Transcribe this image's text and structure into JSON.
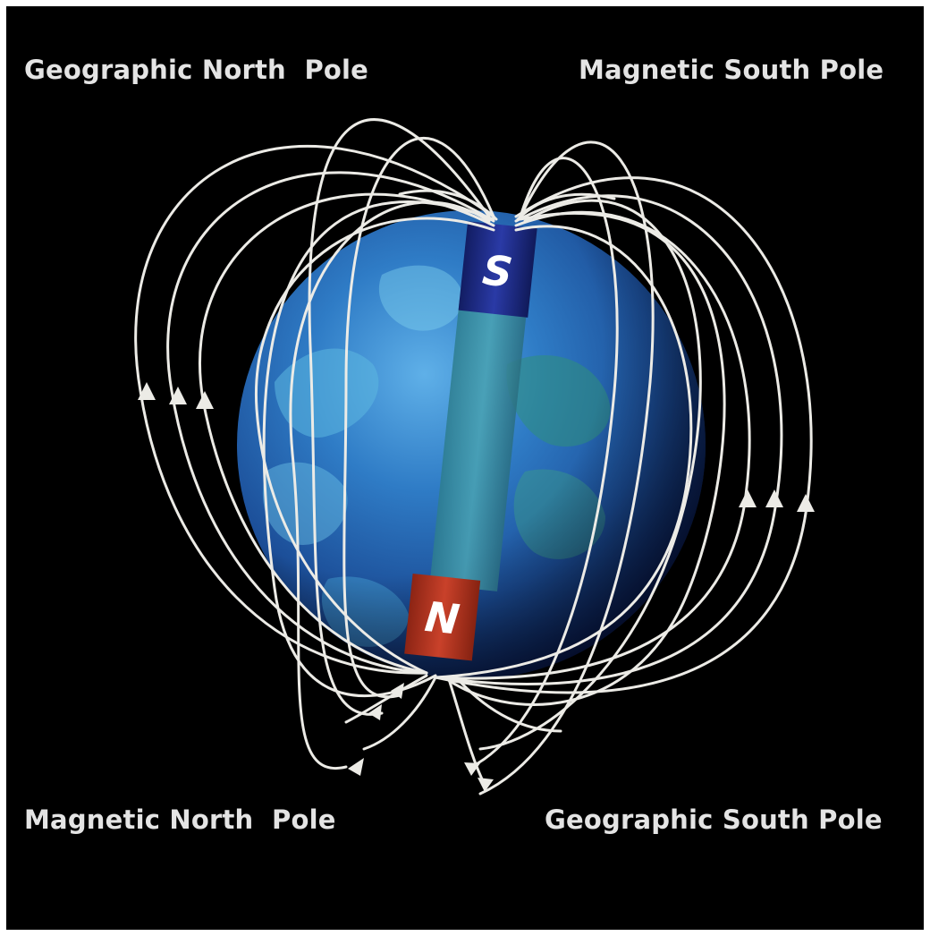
{
  "labels": {
    "top_left": "Geographic North  Pole",
    "top_right": "Magnetic South Pole",
    "bottom_left": "Magnetic North  Pole",
    "bottom_right": "Geographic South Pole"
  },
  "magnet": {
    "top_pole_letter": "S",
    "bottom_pole_letter": "N",
    "top_pole_color": "#1d2c8a",
    "bottom_pole_color": "#b8331d"
  },
  "colors": {
    "background": "#000000",
    "earth_ocean": "#1f5fae",
    "field_lines": "#ecebe6"
  }
}
